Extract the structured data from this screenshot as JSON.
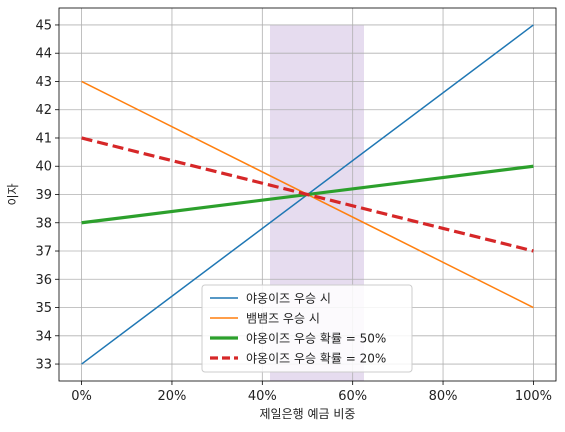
{
  "chart_data": {
    "type": "line",
    "xlabel": "제일은행 예금 비중",
    "ylabel": "이자",
    "xlim": [
      -0.05,
      1.05
    ],
    "ylim": [
      32.4,
      45.6
    ],
    "xticks": [
      0,
      0.2,
      0.4,
      0.6,
      0.8,
      1.0
    ],
    "xtick_labels": [
      "0%",
      "20%",
      "40%",
      "60%",
      "80%",
      "100%"
    ],
    "yticks": [
      33,
      34,
      35,
      36,
      37,
      38,
      39,
      40,
      41,
      42,
      43,
      44,
      45
    ],
    "ytick_labels": [
      "33",
      "34",
      "35",
      "36",
      "37",
      "38",
      "39",
      "40",
      "41",
      "42",
      "43",
      "44",
      "45"
    ],
    "grid": true,
    "shaded_region": {
      "x": [
        0.417,
        0.625
      ],
      "y": [
        32.4,
        45.0
      ],
      "color": "#e6dcef"
    },
    "legend_position": "lower-center",
    "series": [
      {
        "name": "야옹이즈 우승 시",
        "x": [
          0,
          1
        ],
        "y": [
          33,
          45
        ],
        "color": "#1f77b4",
        "style": "solid",
        "weight": "thin"
      },
      {
        "name": "뱀뱀즈 우승 시",
        "x": [
          0,
          1
        ],
        "y": [
          43,
          35
        ],
        "color": "#ff7f0e",
        "style": "solid",
        "weight": "thin"
      },
      {
        "name": "야옹이즈 우승 확률 = 50%",
        "x": [
          0,
          1
        ],
        "y": [
          38,
          40
        ],
        "color": "#2ca02c",
        "style": "solid",
        "weight": "thick"
      },
      {
        "name": "야옹이즈 우승 확률 = 20%",
        "x": [
          0,
          1
        ],
        "y": [
          41,
          37
        ],
        "color": "#d62728",
        "style": "dashed",
        "weight": "thick"
      }
    ]
  }
}
